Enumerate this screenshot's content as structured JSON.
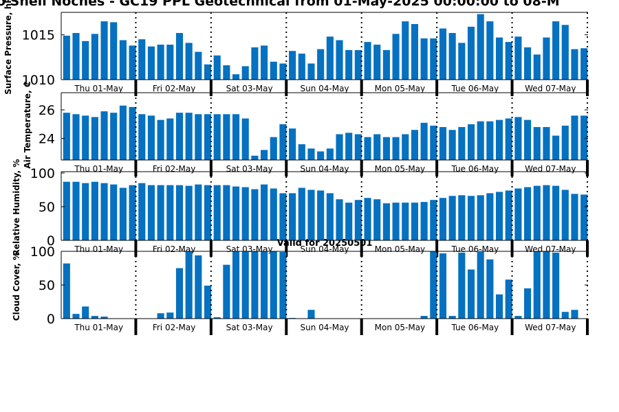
{
  "figure": {
    "title": "o Shell Noches - GC19 PPL Geotechnical from 01-May-2025 00:00:00 to 08-M",
    "valid_note": "Valid for 20250501",
    "colors": {
      "bar": "#0571c0",
      "axis": "#000000",
      "background": "#ffffff"
    }
  },
  "chart_data": [
    {
      "type": "bar",
      "ylabel": "Surface Pressure, hPa",
      "ylim": [
        1010,
        1017.5
      ],
      "yticks": [
        "1010",
        "1015"
      ],
      "day_labels": [
        "Thu 01-May",
        "Fri 02-May",
        "Sat 03-May",
        "Sun 04-May",
        "Mon 05-May",
        "Tue 06-May",
        "Wed 07-May"
      ],
      "values": [
        1014.9,
        1015.2,
        1014.3,
        1015.1,
        1016.5,
        1016.4,
        1014.4,
        1013.8,
        1014.5,
        1013.7,
        1013.9,
        1013.9,
        1015.2,
        1014.1,
        1013.1,
        1011.7,
        1012.7,
        1011.6,
        1010.6,
        1011.5,
        1013.6,
        1013.8,
        1012.0,
        1011.8,
        1013.2,
        1012.9,
        1011.8,
        1013.4,
        1014.8,
        1014.4,
        1013.3,
        1013.3,
        1014.2,
        1013.9,
        1013.3,
        1015.1,
        1016.5,
        1016.2,
        1014.6,
        1014.6,
        1015.7,
        1015.2,
        1014.1,
        1015.9,
        1017.3,
        1016.5,
        1014.7,
        1014.2,
        1014.8,
        1013.6,
        1012.8,
        1014.7,
        1016.5,
        1016.1,
        1013.4,
        1013.5
      ]
    },
    {
      "type": "bar",
      "ylabel": "Air Temperature, C",
      "ylim": [
        22.5,
        27.2
      ],
      "yticks": [
        "24",
        "26"
      ],
      "day_labels": [
        "Thu 01-May",
        "Fri 02-May",
        "Sat 03-May",
        "Sun 04-May",
        "Mon 05-May",
        "Tue 06-May",
        "Wed 07-May"
      ],
      "values": [
        25.8,
        25.7,
        25.6,
        25.5,
        25.9,
        25.8,
        26.3,
        26.2,
        25.7,
        25.6,
        25.3,
        25.4,
        25.8,
        25.8,
        25.7,
        25.7,
        25.7,
        25.7,
        25.7,
        25.4,
        22.8,
        23.2,
        24.1,
        25.0,
        24.7,
        23.6,
        23.3,
        23.1,
        23.3,
        24.3,
        24.4,
        24.3,
        24.1,
        24.3,
        24.1,
        24.1,
        24.3,
        24.6,
        25.1,
        24.9,
        24.8,
        24.6,
        24.8,
        25.0,
        25.2,
        25.2,
        25.3,
        25.4,
        25.5,
        25.3,
        24.8,
        24.8,
        24.2,
        24.9,
        25.6,
        25.6
      ]
    },
    {
      "type": "bar",
      "ylabel": "Relative Humidity, %",
      "ylim": [
        0,
        102
      ],
      "yticks": [
        "0",
        "50",
        "100"
      ],
      "day_labels": [
        "Thu 01-May",
        "Fri 02-May",
        "Sat 03-May",
        "Sun 04-May",
        "Mon 05-May",
        "Tue 06-May",
        "Wed 07-May"
      ],
      "values": [
        87,
        87,
        85,
        87,
        85,
        83,
        78,
        82,
        85,
        82,
        82,
        82,
        82,
        81,
        83,
        82,
        82,
        82,
        80,
        79,
        76,
        83,
        77,
        70,
        70,
        78,
        75,
        74,
        70,
        61,
        56,
        60,
        63,
        61,
        55,
        56,
        56,
        56,
        57,
        60,
        63,
        66,
        67,
        66,
        67,
        70,
        72,
        74,
        77,
        79,
        81,
        82,
        81,
        75,
        69,
        68
      ]
    },
    {
      "type": "bar",
      "ylabel": "Cloud Cover, %",
      "ylim": [
        0,
        100
      ],
      "yticks": [
        "0",
        "50",
        "100"
      ],
      "day_labels": [
        "Thu 01-May",
        "Fri 02-May",
        "Sat 03-May",
        "Sun 04-May",
        "Mon 05-May",
        "Tue 06-May",
        "Wed 07-May"
      ],
      "values": [
        82,
        7,
        18,
        4,
        3,
        0,
        0,
        0,
        0,
        0,
        8,
        9,
        75,
        100,
        94,
        49,
        2,
        80,
        100,
        100,
        100,
        100,
        100,
        99,
        1,
        0,
        13,
        0,
        0,
        0,
        0,
        0,
        0,
        0,
        0,
        0,
        0,
        0,
        4,
        100,
        97,
        4,
        98,
        73,
        99,
        88,
        36,
        58,
        4,
        45,
        100,
        100,
        98,
        10,
        13,
        0
      ]
    }
  ]
}
